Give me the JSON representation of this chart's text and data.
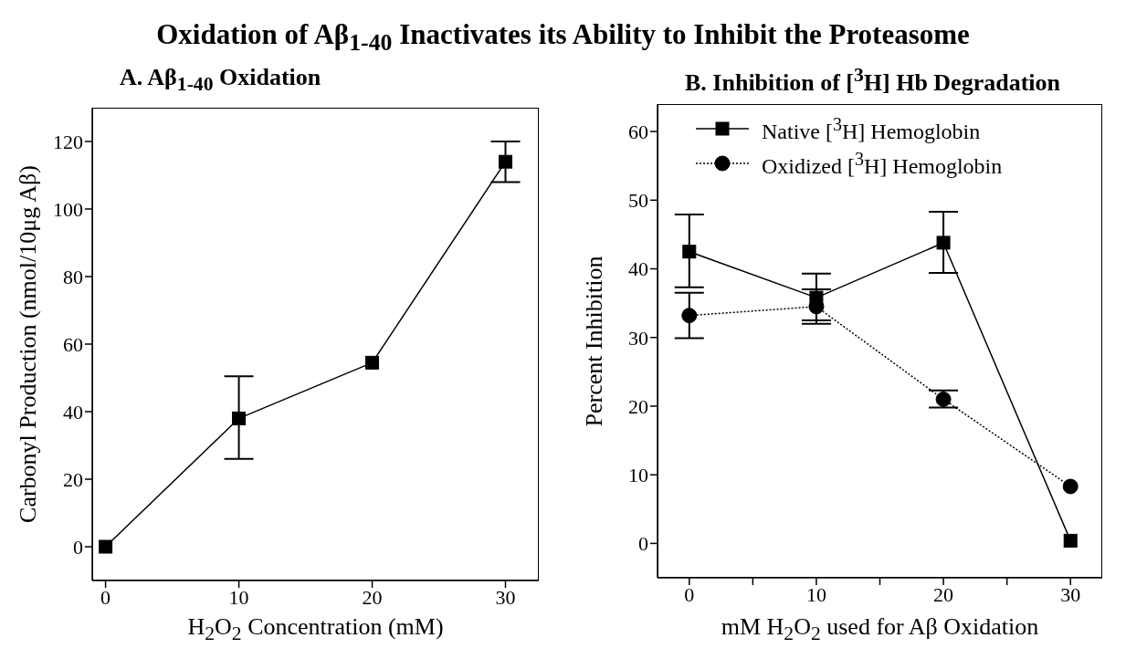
{
  "chart_data": [
    {
      "type": "line",
      "title": "Oxidation of Aβ$_{1-40}$ Inactivates its Ability to Inhibit  the Proteasome",
      "subtitle": "A.  Aβ$_{1-40}$ Oxidation",
      "xlabel": "H$_{2}$O$_{2}$ Concentration (mM)",
      "ylabel": "Carbonyl Production (nmol/10μg Aβ)",
      "x": [
        0,
        10,
        20,
        30
      ],
      "xlim": [
        -1,
        32.5
      ],
      "xticks": [
        0,
        10,
        20,
        30
      ],
      "ylim": [
        -10,
        130
      ],
      "yticks": [
        0,
        20,
        40,
        60,
        80,
        100,
        120
      ],
      "legend": false,
      "series": [
        {
          "color": "#000000",
          "marker": "square",
          "line_style": "solid",
          "values": [
            0,
            38,
            54.5,
            114
          ],
          "errors": [
            null,
            [
              26,
              50.5
            ],
            null,
            [
              108,
              120
            ]
          ]
        }
      ]
    },
    {
      "type": "line",
      "subtitle": "B.  Inhibition of [$^{3}$H] Hb Degradation",
      "xlabel": "mM H$_{2}$O$_{2}$ used for Aβ Oxidation",
      "ylabel": "Percent Inhibition",
      "x": [
        0,
        10,
        20,
        30
      ],
      "xlim": [
        -2.5,
        32.5
      ],
      "xticks": [
        0,
        {
          "value": 5,
          "label": null
        },
        10,
        {
          "value": 15,
          "label": null
        },
        20,
        {
          "value": 25,
          "label": null
        },
        30
      ],
      "ylim": [
        -5,
        64
      ],
      "yticks": [
        0,
        10,
        20,
        30,
        40,
        50,
        60
      ],
      "legend": "top",
      "series": [
        {
          "name": "Native [$^{3}$H] Hemoglobin",
          "color": "#000000",
          "marker": "square",
          "line_style": "solid",
          "values": [
            42.5,
            35.8,
            43.8,
            0.4
          ],
          "errors": [
            [
              37.3,
              47.9
            ],
            [
              32.5,
              39.3
            ],
            [
              39.4,
              48.3
            ],
            null
          ]
        },
        {
          "name": "Oxidized [$^{3}$H] Hemoglobin",
          "color": "#000000",
          "marker": "circle",
          "line_style": "dotted",
          "values": [
            33.2,
            34.5,
            21,
            8.3
          ],
          "errors": [
            [
              29.9,
              36.5
            ],
            [
              32,
              37
            ],
            [
              19.8,
              22.3
            ],
            null
          ]
        }
      ]
    }
  ]
}
